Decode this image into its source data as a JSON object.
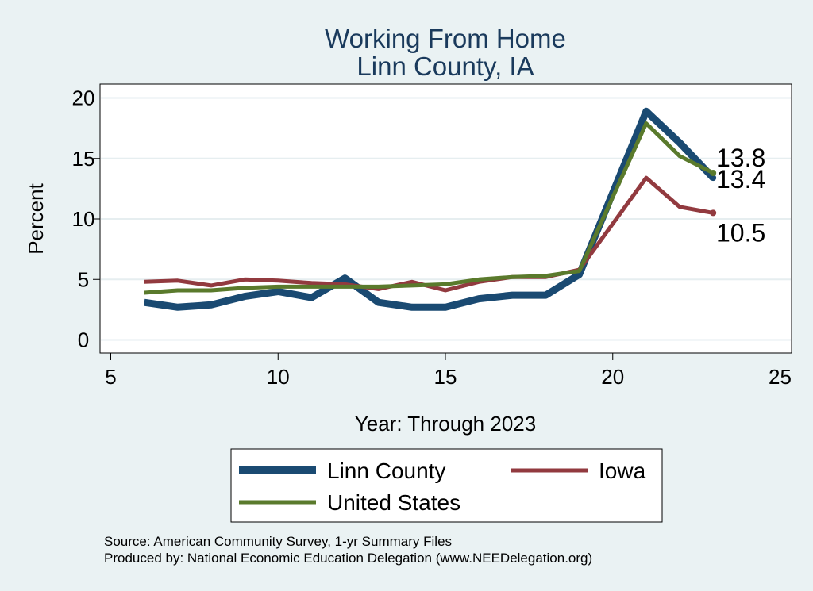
{
  "chart_data": {
    "type": "line",
    "title": "Working From Home",
    "subtitle": "Linn County, IA",
    "xlabel": "Year: Through 2023",
    "ylabel": "Percent",
    "xlim": [
      5,
      25
    ],
    "ylim": [
      0,
      20
    ],
    "xticks": [
      "5",
      "10",
      "15",
      "20",
      "25"
    ],
    "yticks": [
      "0",
      "5",
      "10",
      "15",
      "20"
    ],
    "grid": true,
    "x": [
      6,
      7,
      8,
      9,
      10,
      11,
      12,
      13,
      14,
      15,
      16,
      17,
      18,
      19,
      21,
      22,
      23
    ],
    "series": [
      {
        "name": "Linn County",
        "color": "#1a4a72",
        "values": [
          3.1,
          2.7,
          2.9,
          3.6,
          4.0,
          3.5,
          5.1,
          3.1,
          2.7,
          2.7,
          3.4,
          3.7,
          3.7,
          5.4,
          18.9,
          16.3,
          13.4
        ],
        "end_label": "13.4"
      },
      {
        "name": "Iowa",
        "color": "#923a3f",
        "values": [
          4.8,
          4.9,
          4.5,
          5.0,
          4.9,
          4.7,
          4.6,
          4.2,
          4.8,
          4.1,
          4.8,
          5.2,
          5.2,
          5.8,
          13.4,
          11.0,
          10.5
        ],
        "end_label": "10.5"
      },
      {
        "name": "United States",
        "color": "#5a7a2c",
        "values": [
          3.9,
          4.1,
          4.1,
          4.3,
          4.4,
          4.4,
          4.4,
          4.4,
          4.5,
          4.6,
          5.0,
          5.2,
          5.3,
          5.7,
          17.9,
          15.2,
          13.8
        ],
        "end_label": "13.8"
      }
    ],
    "legend_placement": "bottom"
  },
  "notes": {
    "source": "Source: American Community Survey, 1-yr Summary Files",
    "produced_by": "Produced by: National Economic Education Delegation (www.NEEDelegation.org)"
  }
}
